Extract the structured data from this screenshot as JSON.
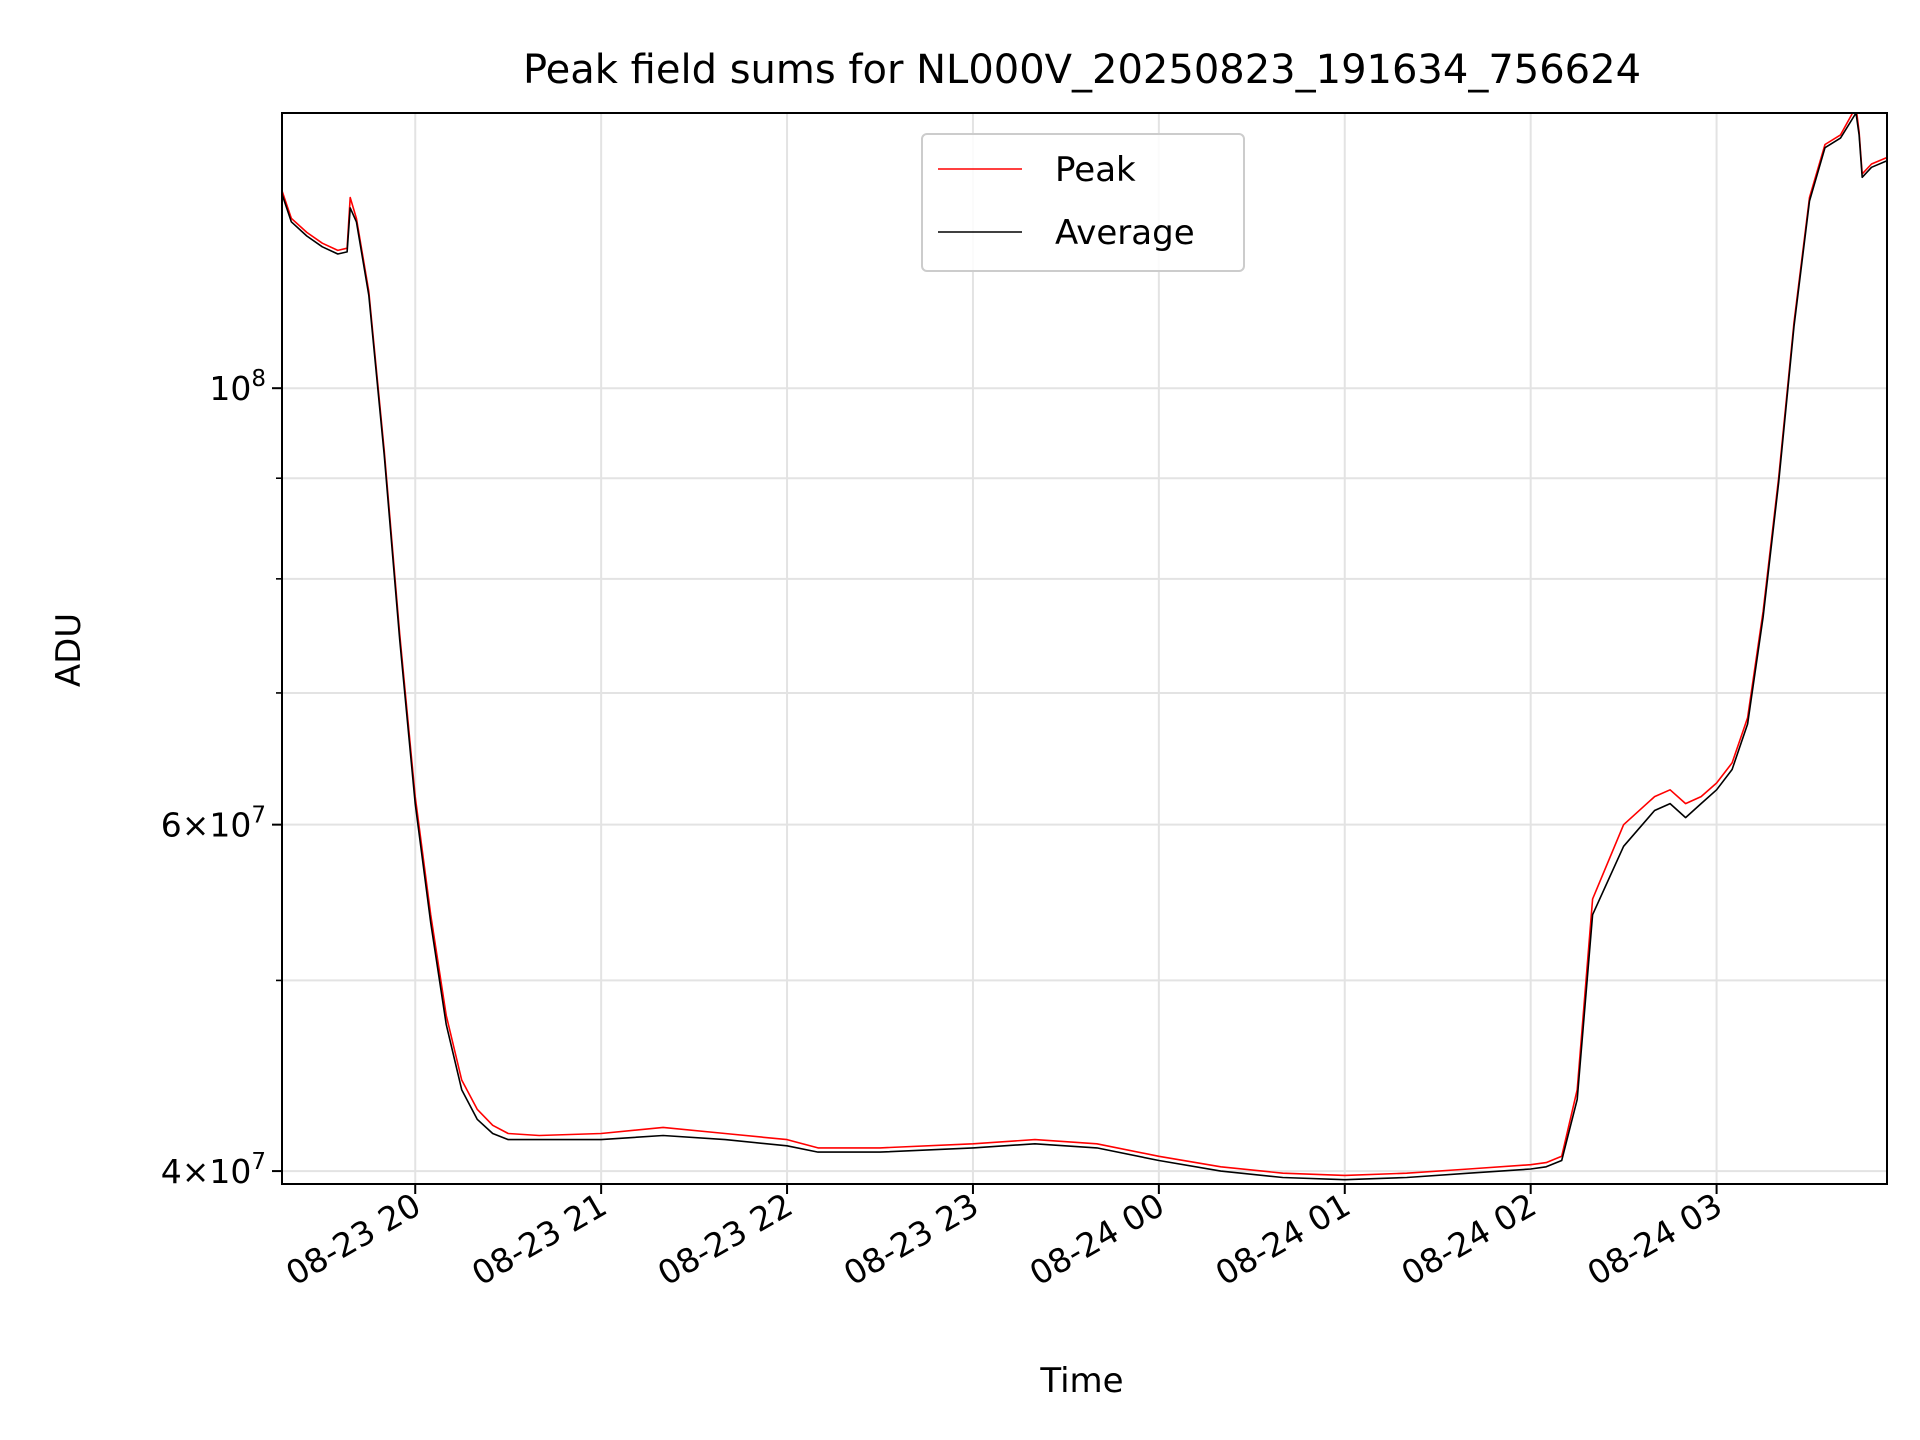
{
  "chart_data": {
    "type": "line",
    "title": "Peak field sums for NL000V_20250823_191634_756624",
    "xlabel": "Time",
    "ylabel": "ADU",
    "yscale": "log",
    "grid": true,
    "legend_position": "top-center",
    "xlim": [
      "2025-08-23 19:17",
      "2025-08-24 03:55"
    ],
    "ylim": [
      39400000,
      138000000
    ],
    "xticks": [
      {
        "t": "2025-08-23 20:00",
        "label": "08-23 20"
      },
      {
        "t": "2025-08-23 21:00",
        "label": "08-23 21"
      },
      {
        "t": "2025-08-23 22:00",
        "label": "08-23 22"
      },
      {
        "t": "2025-08-23 23:00",
        "label": "08-23 23"
      },
      {
        "t": "2025-08-24 00:00",
        "label": "08-24 00"
      },
      {
        "t": "2025-08-24 01:00",
        "label": "08-24 01"
      },
      {
        "t": "2025-08-24 02:00",
        "label": "08-24 02"
      },
      {
        "t": "2025-08-24 03:00",
        "label": "08-24 03"
      }
    ],
    "yticks_major": [
      {
        "value": 40000000,
        "base": "4",
        "exp": "7"
      },
      {
        "value": 60000000,
        "base": "6",
        "exp": "7"
      },
      {
        "value": 100000000,
        "base": "",
        "exp": "8"
      }
    ],
    "yticks_minor": [
      50000000,
      70000000,
      80000000,
      90000000
    ],
    "series": [
      {
        "name": "Peak",
        "color": "#ff0000",
        "x": [
          "2025-08-23 19:17",
          "2025-08-23 19:20",
          "2025-08-23 19:25",
          "2025-08-23 19:30",
          "2025-08-23 19:35",
          "2025-08-23 19:38",
          "2025-08-23 19:39",
          "2025-08-23 19:41",
          "2025-08-23 19:45",
          "2025-08-23 19:50",
          "2025-08-23 19:55",
          "2025-08-23 20:00",
          "2025-08-23 20:05",
          "2025-08-23 20:10",
          "2025-08-23 20:15",
          "2025-08-23 20:20",
          "2025-08-23 20:25",
          "2025-08-23 20:30",
          "2025-08-23 20:40",
          "2025-08-23 21:00",
          "2025-08-23 21:20",
          "2025-08-23 21:40",
          "2025-08-23 22:00",
          "2025-08-23 22:10",
          "2025-08-23 22:30",
          "2025-08-23 23:00",
          "2025-08-23 23:20",
          "2025-08-23 23:40",
          "2025-08-24 00:00",
          "2025-08-24 00:20",
          "2025-08-24 00:40",
          "2025-08-24 01:00",
          "2025-08-24 01:20",
          "2025-08-24 01:40",
          "2025-08-24 02:00",
          "2025-08-24 02:05",
          "2025-08-24 02:10",
          "2025-08-24 02:15",
          "2025-08-24 02:20",
          "2025-08-24 02:30",
          "2025-08-24 02:40",
          "2025-08-24 02:45",
          "2025-08-24 02:50",
          "2025-08-24 02:55",
          "2025-08-24 03:00",
          "2025-08-24 03:05",
          "2025-08-24 03:10",
          "2025-08-24 03:15",
          "2025-08-24 03:20",
          "2025-08-24 03:25",
          "2025-08-24 03:30",
          "2025-08-24 03:35",
          "2025-08-24 03:40",
          "2025-08-24 03:45",
          "2025-08-24 03:46",
          "2025-08-24 03:47",
          "2025-08-24 03:50",
          "2025-08-24 03:55"
        ],
        "y": [
          126000000,
          122000000,
          120000000,
          118500000,
          117500000,
          117800000,
          125000000,
          122000000,
          112000000,
          93000000,
          75000000,
          62000000,
          54000000,
          48000000,
          44500000,
          43000000,
          42200000,
          41800000,
          41700000,
          41800000,
          42100000,
          41800000,
          41500000,
          41100000,
          41100000,
          41300000,
          41500000,
          41300000,
          40700000,
          40200000,
          39900000,
          39800000,
          39900000,
          40100000,
          40300000,
          40400000,
          40700000,
          44000000,
          55000000,
          60000000,
          62000000,
          62500000,
          61500000,
          62000000,
          63000000,
          64500000,
          68000000,
          77000000,
          90000000,
          108000000,
          125000000,
          133000000,
          134500000,
          139000000,
          135000000,
          128500000,
          130000000,
          131000000
        ]
      },
      {
        "name": "Average",
        "color": "#000000",
        "x": [
          "2025-08-23 19:17",
          "2025-08-23 19:20",
          "2025-08-23 19:25",
          "2025-08-23 19:30",
          "2025-08-23 19:35",
          "2025-08-23 19:38",
          "2025-08-23 19:39",
          "2025-08-23 19:41",
          "2025-08-23 19:45",
          "2025-08-23 19:50",
          "2025-08-23 19:55",
          "2025-08-23 20:00",
          "2025-08-23 20:05",
          "2025-08-23 20:10",
          "2025-08-23 20:15",
          "2025-08-23 20:20",
          "2025-08-23 20:25",
          "2025-08-23 20:30",
          "2025-08-23 20:40",
          "2025-08-23 21:00",
          "2025-08-23 21:20",
          "2025-08-23 21:40",
          "2025-08-23 22:00",
          "2025-08-23 22:10",
          "2025-08-23 22:30",
          "2025-08-23 23:00",
          "2025-08-23 23:20",
          "2025-08-23 23:40",
          "2025-08-24 00:00",
          "2025-08-24 00:20",
          "2025-08-24 00:40",
          "2025-08-24 01:00",
          "2025-08-24 01:20",
          "2025-08-24 01:40",
          "2025-08-24 02:00",
          "2025-08-24 02:05",
          "2025-08-24 02:10",
          "2025-08-24 02:15",
          "2025-08-24 02:20",
          "2025-08-24 02:30",
          "2025-08-24 02:40",
          "2025-08-24 02:45",
          "2025-08-24 02:50",
          "2025-08-24 02:55",
          "2025-08-24 03:00",
          "2025-08-24 03:05",
          "2025-08-24 03:10",
          "2025-08-24 03:15",
          "2025-08-24 03:20",
          "2025-08-24 03:25",
          "2025-08-24 03:30",
          "2025-08-24 03:35",
          "2025-08-24 03:40",
          "2025-08-24 03:45",
          "2025-08-24 03:46",
          "2025-08-24 03:47",
          "2025-08-24 03:50",
          "2025-08-24 03:55"
        ],
        "y": [
          125500000,
          121500000,
          119500000,
          118000000,
          117000000,
          117300000,
          123500000,
          121500000,
          111500000,
          92500000,
          74500000,
          61500000,
          53500000,
          47500000,
          44000000,
          42500000,
          41800000,
          41500000,
          41500000,
          41500000,
          41700000,
          41500000,
          41200000,
          40900000,
          40900000,
          41100000,
          41300000,
          41100000,
          40500000,
          40000000,
          39700000,
          39600000,
          39700000,
          39900000,
          40100000,
          40200000,
          40500000,
          43500000,
          54000000,
          58500000,
          61000000,
          61500000,
          60500000,
          61500000,
          62500000,
          64000000,
          67500000,
          76500000,
          89500000,
          107500000,
          124500000,
          132500000,
          134000000,
          138000000,
          134500000,
          128000000,
          129500000,
          130500000
        ]
      }
    ]
  }
}
